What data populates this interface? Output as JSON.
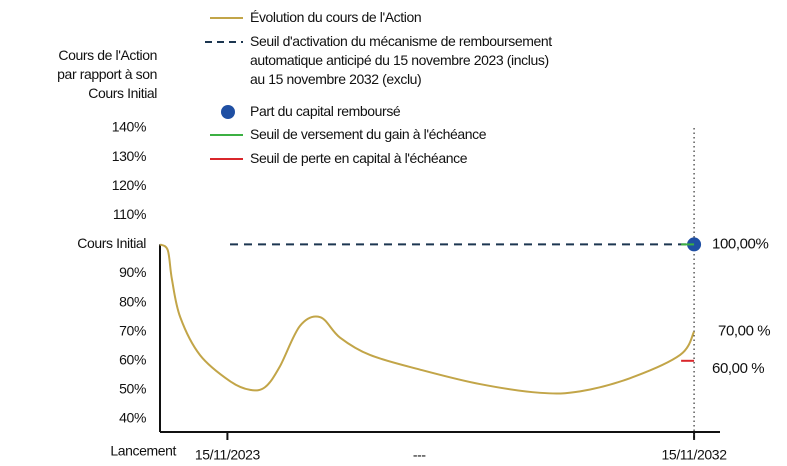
{
  "chart_data": {
    "type": "line",
    "ylabel": "Cours de l'Action\npar rapport à son\nCours Initial",
    "xlim": [
      0,
      10.8
    ],
    "xticks": [
      {
        "value": 0,
        "label": "Lancement"
      },
      {
        "value": 1.3,
        "label": "15/11/2023"
      },
      {
        "value": 5,
        "label": "---"
      },
      {
        "value": 10.3,
        "label": "15/11/2032"
      }
    ],
    "ylim": [
      40,
      140
    ],
    "yticks": [
      {
        "value": 40,
        "label": "40%"
      },
      {
        "value": 50,
        "label": "50%"
      },
      {
        "value": 60,
        "label": "60%"
      },
      {
        "value": 70,
        "label": "70%"
      },
      {
        "value": 80,
        "label": "80%"
      },
      {
        "value": 90,
        "label": "90%"
      },
      {
        "value": 100,
        "label": "Cours Initial"
      },
      {
        "value": 110,
        "label": "110%"
      },
      {
        "value": 120,
        "label": "120%"
      },
      {
        "value": 130,
        "label": "130%"
      },
      {
        "value": 140,
        "label": "140%"
      }
    ],
    "series": [
      {
        "name": "Évolution du cours de l'Action",
        "color": "#c2a548",
        "style": "line",
        "x": [
          0,
          0.15,
          0.23,
          0.39,
          0.77,
          1.35,
          1.74,
          2.03,
          2.31,
          2.7,
          3.09,
          3.47,
          4.05,
          5.01,
          6.17,
          7.33,
          8.1,
          9.06,
          10.03,
          10.3
        ],
        "values": [
          100,
          98,
          88,
          75,
          62,
          53,
          50,
          51,
          58,
          72,
          75,
          68,
          62,
          57,
          52,
          49,
          49.5,
          54,
          62,
          70
        ],
        "value_labels": [
          null,
          null,
          null,
          null,
          null,
          null,
          null,
          null,
          null,
          null,
          null,
          null,
          null,
          null,
          null,
          null,
          null,
          null,
          null,
          "70,00 %"
        ]
      },
      {
        "name": "Seuil d'activation du mécanisme de remboursement\nautomatique anticipé du 15 novembre 2023 (inclus)\nau 15 novembre 2032 (exclu)",
        "color": "#1c3650",
        "style": "dashed",
        "x": [
          1.35,
          10.3
        ],
        "values": [
          100,
          100
        ]
      },
      {
        "name": "Part du capital remboursé",
        "color": "#1f4fa3",
        "style": "dot",
        "x": [
          10.3
        ],
        "values": [
          100
        ],
        "value_labels": [
          "100,00%"
        ]
      },
      {
        "name": "Seuil de versement du gain à l'échéance",
        "color": "#3cb043",
        "style": "line",
        "x": [
          10.05,
          10.3
        ],
        "values": [
          100,
          100
        ]
      },
      {
        "name": "Seuil de perte en capital à l'échéance",
        "color": "#d9262b",
        "style": "line",
        "x": [
          10.05,
          10.3
        ],
        "values": [
          60,
          60
        ],
        "value_labels": [
          null,
          "60,00 %"
        ]
      }
    ]
  }
}
